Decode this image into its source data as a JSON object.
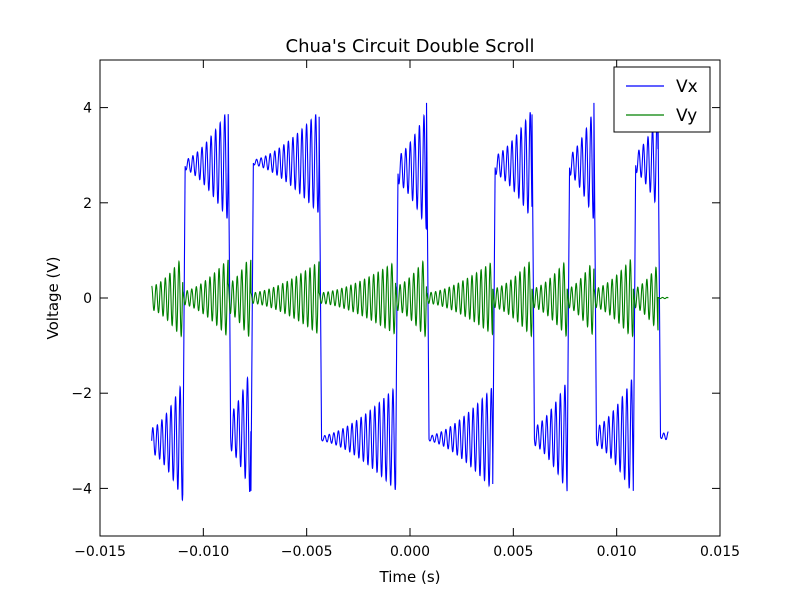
{
  "chart_data": {
    "type": "line",
    "title": "Chua's Circuit Double Scroll",
    "xlabel": "Time (s)",
    "ylabel": "Voltage (V)",
    "xlim": [
      -0.015,
      0.015
    ],
    "ylim": [
      -5,
      5
    ],
    "xticks": [
      -0.015,
      -0.01,
      -0.005,
      0.0,
      0.005,
      0.01,
      0.015
    ],
    "xtick_labels": [
      "−0.015",
      "−0.010",
      "−0.005",
      "0.000",
      "0.005",
      "0.010",
      "0.015"
    ],
    "yticks": [
      -4,
      -2,
      0,
      2,
      4
    ],
    "ytick_labels": [
      "−4",
      "−2",
      "0",
      "2",
      "4"
    ],
    "legend_position": "top-right",
    "grid": false,
    "series": [
      {
        "name": "Vx",
        "color": "#0000ff",
        "segments": [
          {
            "t0": -0.0125,
            "t1": -0.011,
            "level": -3.0,
            "amp0": 0.3,
            "amp1": 1.4,
            "sign": -1,
            "period": 0.00022
          },
          {
            "t0": -0.011,
            "t1": -0.0088,
            "level": 2.8,
            "amp0": 0.1,
            "amp1": 1.3,
            "sign": 1,
            "period": 0.00022
          },
          {
            "t0": -0.0088,
            "t1": -0.0077,
            "level": -2.8,
            "amp0": 0.4,
            "amp1": 1.5,
            "sign": -1,
            "period": 0.00022
          },
          {
            "t0": -0.0077,
            "t1": -0.0044,
            "level": 2.85,
            "amp0": 0.05,
            "amp1": 1.2,
            "sign": 1,
            "period": 0.00022
          },
          {
            "t0": -0.0044,
            "t1": -0.0007,
            "level": -2.95,
            "amp0": 0.05,
            "amp1": 1.2,
            "sign": -1,
            "period": 0.00022
          },
          {
            "t0": -0.0007,
            "t1": 0.0008,
            "level": 2.7,
            "amp0": 0.3,
            "amp1": 1.4,
            "sign": 1,
            "period": 0.00022
          },
          {
            "t0": 0.0008,
            "t1": 0.004,
            "level": -2.95,
            "amp0": 0.05,
            "amp1": 1.2,
            "sign": -1,
            "period": 0.00022
          },
          {
            "t0": 0.004,
            "t1": 0.0059,
            "level": 2.8,
            "amp0": 0.2,
            "amp1": 1.3,
            "sign": 1,
            "period": 0.00022
          },
          {
            "t0": 0.0059,
            "t1": 0.0076,
            "level": -2.9,
            "amp0": 0.2,
            "amp1": 1.3,
            "sign": -1,
            "period": 0.00022
          },
          {
            "t0": 0.0076,
            "t1": 0.0089,
            "level": 2.8,
            "amp0": 0.2,
            "amp1": 1.3,
            "sign": 1,
            "period": 0.00022
          },
          {
            "t0": 0.0089,
            "t1": 0.0108,
            "level": -2.9,
            "amp0": 0.2,
            "amp1": 1.4,
            "sign": -1,
            "period": 0.00022
          },
          {
            "t0": 0.0108,
            "t1": 0.012,
            "level": 2.85,
            "amp0": 0.2,
            "amp1": 1.1,
            "sign": 1,
            "period": 0.00022
          },
          {
            "t0": 0.012,
            "t1": 0.0125,
            "level": -2.9,
            "amp0": 0.05,
            "amp1": 0.1,
            "sign": -1,
            "period": 0.00022
          }
        ]
      },
      {
        "name": "Vy",
        "color": "#008000",
        "note_segments_mirror_vx": true,
        "max_amplitude": 0.8,
        "tail_value": 0.0
      }
    ]
  }
}
